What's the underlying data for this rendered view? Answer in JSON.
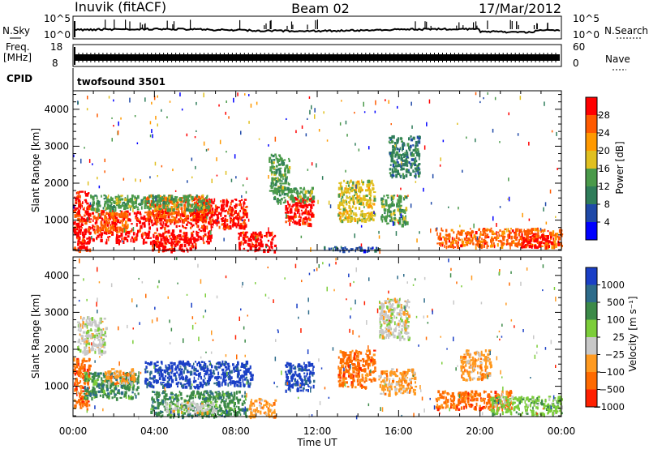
{
  "header": {
    "station": "Inuvik (fitACF)",
    "beam": "Beam 02",
    "date": "17/Mar/2012"
  },
  "strips": {
    "nsky_label": "N.Sky",
    "nsearch_label": "N.Search",
    "freq_label_line1": "Freq.",
    "freq_label_line2": "[MHz]",
    "nave_label": "Nave",
    "cpid_label": "CPID",
    "cpid_value": "twofsound 3501",
    "noise_ticks_left": [
      "10^5",
      "10^0"
    ],
    "noise_ticks_right": [
      "10^5",
      "10^0"
    ],
    "freq_ticks_left": [
      "18",
      "8"
    ],
    "freq_ticks_right": [
      "60",
      "0"
    ]
  },
  "colors": {
    "power": [
      "#0000ff",
      "#1f49a8",
      "#2f7d5a",
      "#4a9a4a",
      "#e0c020",
      "#ff9900",
      "#ff5a00",
      "#ff0000"
    ],
    "velocity": [
      "#1a3fc6",
      "#2d6b8a",
      "#3c8a48",
      "#7ccd3a",
      "#c8c8c8",
      "#ff9a20",
      "#ff6a00",
      "#ff2000"
    ]
  },
  "chart_data": [
    {
      "type": "heatmap",
      "name": "power",
      "ylabel": "Slant Range [km]",
      "xlabel": "",
      "xticks": [
        "00:00",
        "04:00",
        "08:00",
        "12:00",
        "16:00",
        "20:00",
        "00:00"
      ],
      "yticks": [
        "1000",
        "2000",
        "3000",
        "4000"
      ],
      "ylim": [
        180,
        4500
      ],
      "xlim_hours": [
        0,
        24
      ],
      "colorbar_label": "Power [dB]",
      "colorbar_ticks": [
        "28",
        "24",
        "20",
        "16",
        "12",
        "8",
        "4"
      ],
      "regions": [
        {
          "t0": 0.2,
          "t1": 6.8,
          "r0": 400,
          "r1": 1300,
          "c": 7
        },
        {
          "t0": 1.0,
          "t1": 2.6,
          "r0": 700,
          "r1": 1250,
          "c": 6
        },
        {
          "t0": 3.5,
          "t1": 6.5,
          "r0": 1000,
          "r1": 1700,
          "c": 6
        },
        {
          "t0": 6.0,
          "t1": 8.5,
          "r0": 800,
          "r1": 1600,
          "c": 7
        },
        {
          "t0": 0.0,
          "t1": 0.8,
          "r0": 200,
          "r1": 1800,
          "c": 7
        },
        {
          "t0": 0.8,
          "t1": 6.7,
          "r0": 1300,
          "r1": 1700,
          "c": 3
        },
        {
          "t0": 3.8,
          "t1": 6.0,
          "r0": 200,
          "r1": 650,
          "c": 7
        },
        {
          "t0": 8.1,
          "t1": 9.9,
          "r0": 200,
          "r1": 700,
          "c": 7
        },
        {
          "t0": 10.4,
          "t1": 11.8,
          "r0": 900,
          "r1": 1650,
          "c": 7
        },
        {
          "t0": 9.8,
          "t1": 11.8,
          "r0": 1500,
          "r1": 1900,
          "c": 3
        },
        {
          "t0": 13.0,
          "t1": 14.8,
          "r0": 1000,
          "r1": 2100,
          "c": 4
        },
        {
          "t0": 15.1,
          "t1": 16.4,
          "r0": 900,
          "r1": 1700,
          "c": 3
        },
        {
          "t0": 15.5,
          "t1": 17.0,
          "r0": 2200,
          "r1": 3300,
          "c": 2
        },
        {
          "t0": 17.8,
          "t1": 24.0,
          "r0": 300,
          "r1": 800,
          "c": 6
        },
        {
          "t0": 22.0,
          "t1": 23.6,
          "r0": 300,
          "r1": 650,
          "c": 7
        },
        {
          "t0": 12.2,
          "t1": 15.0,
          "r0": 180,
          "r1": 300,
          "c": 1
        },
        {
          "t0": 9.6,
          "t1": 10.6,
          "r0": 1800,
          "r1": 2800,
          "c": 3
        }
      ]
    },
    {
      "type": "heatmap",
      "name": "velocity",
      "ylabel": "Slant Range [km]",
      "xlabel": "Time UT",
      "xticks": [
        "00:00",
        "04:00",
        "08:00",
        "12:00",
        "16:00",
        "20:00",
        "00:00"
      ],
      "yticks": [
        "1000",
        "2000",
        "3000",
        "4000"
      ],
      "ylim": [
        180,
        4500
      ],
      "xlim_hours": [
        0,
        24
      ],
      "colorbar_label": "Velocity [m s⁻¹]",
      "colorbar_ticks": [
        "1000",
        "500",
        "100",
        "25",
        "−25",
        "−100",
        "−500",
        "−1000"
      ],
      "regions": [
        {
          "t0": 0.0,
          "t1": 0.8,
          "r0": 400,
          "r1": 1800,
          "c": 6
        },
        {
          "t0": 0.5,
          "t1": 3.2,
          "r0": 700,
          "r1": 1400,
          "c": 2
        },
        {
          "t0": 1.5,
          "t1": 3.0,
          "r0": 1100,
          "r1": 1500,
          "c": 5
        },
        {
          "t0": 3.5,
          "t1": 8.8,
          "r0": 1000,
          "r1": 1700,
          "c": 0
        },
        {
          "t0": 3.8,
          "t1": 8.5,
          "r0": 200,
          "r1": 900,
          "c": 2
        },
        {
          "t0": 4.5,
          "t1": 7.0,
          "r0": 300,
          "r1": 600,
          "c": 4
        },
        {
          "t0": 8.6,
          "t1": 9.9,
          "r0": 200,
          "r1": 700,
          "c": 5
        },
        {
          "t0": 10.4,
          "t1": 11.8,
          "r0": 900,
          "r1": 1700,
          "c": 0
        },
        {
          "t0": 13.0,
          "t1": 14.8,
          "r0": 1000,
          "r1": 2000,
          "c": 6
        },
        {
          "t0": 15.0,
          "t1": 16.8,
          "r0": 800,
          "r1": 1500,
          "c": 5
        },
        {
          "t0": 15.0,
          "t1": 16.5,
          "r0": 2300,
          "r1": 3400,
          "c": 4
        },
        {
          "t0": 17.8,
          "t1": 21.5,
          "r0": 400,
          "r1": 900,
          "c": 6
        },
        {
          "t0": 20.5,
          "t1": 24.0,
          "r0": 250,
          "r1": 750,
          "c": 3
        },
        {
          "t0": 0.2,
          "t1": 1.6,
          "r0": 1900,
          "r1": 2900,
          "c": 4
        },
        {
          "t0": 19.0,
          "t1": 20.5,
          "r0": 1200,
          "r1": 2000,
          "c": 5
        }
      ]
    }
  ]
}
